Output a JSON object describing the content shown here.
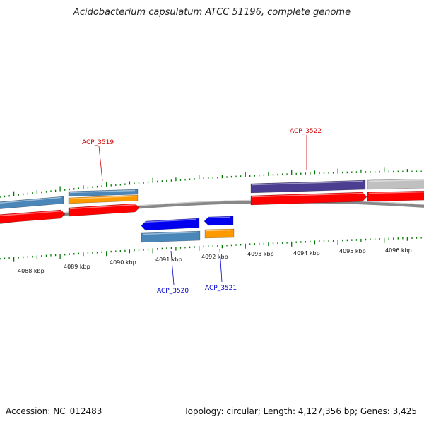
{
  "title": "Acidobacterium capsulatum ATCC 51196, complete genome",
  "accession": "Accession: NC_012483",
  "summary": "Topology: circular; Length: 4,127,356 bp; Genes: 3,425",
  "scale": {
    "labels": [
      "4088 kbp",
      "4089 kbp",
      "4090 kbp",
      "4091 kbp",
      "4092 kbp",
      "4093 kbp",
      "4094 kbp",
      "4095 kbp",
      "4096 kbp"
    ]
  },
  "gene_labels": [
    {
      "name": "ACP_3519",
      "strand": "forward"
    },
    {
      "name": "ACP_3522",
      "strand": "forward"
    },
    {
      "name": "ACP_3520",
      "strand": "reverse"
    },
    {
      "name": "ACP_3521",
      "strand": "reverse"
    }
  ],
  "colors": {
    "forward_label": "#cc0000",
    "reverse_label": "#0000cc",
    "cds": "#ff0000",
    "reverse_cds": "#0000ee",
    "gene_steelblue": "#4a86b8",
    "gene_orange": "#ff9900",
    "gene_purple": "#4b3d8f",
    "gene_gray": "#c0c0c0",
    "backbone": "#888888",
    "ticks": "#007700"
  }
}
